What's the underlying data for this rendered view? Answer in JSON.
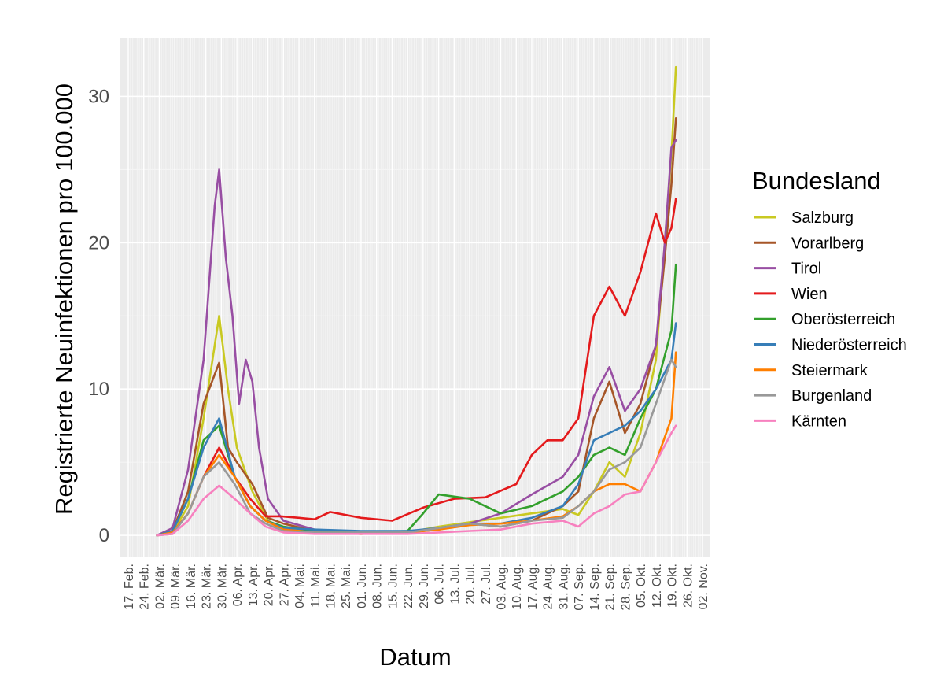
{
  "chart_data": {
    "type": "line",
    "title": "",
    "xlabel": "Datum",
    "ylabel": "Registrierte Neuinfektionen pro 100.000",
    "legend_title": "Bundesland",
    "legend_position": "right",
    "grid": true,
    "x_start": "2020-02-17",
    "x_end": "2020-11-02",
    "ylim": [
      -1.5,
      34
    ],
    "y_ticks": [
      0,
      10,
      20,
      30
    ],
    "y_tick_labels": [
      "0",
      "10",
      "20",
      "30"
    ],
    "x_ticks": [
      "2020-02-17",
      "2020-02-24",
      "2020-03-02",
      "2020-03-09",
      "2020-03-16",
      "2020-03-23",
      "2020-03-30",
      "2020-04-06",
      "2020-04-13",
      "2020-04-20",
      "2020-04-27",
      "2020-05-04",
      "2020-05-11",
      "2020-05-18",
      "2020-05-25",
      "2020-06-01",
      "2020-06-08",
      "2020-06-15",
      "2020-06-22",
      "2020-06-29",
      "2020-07-06",
      "2020-07-13",
      "2020-07-20",
      "2020-07-27",
      "2020-08-03",
      "2020-08-10",
      "2020-08-17",
      "2020-08-24",
      "2020-08-31",
      "2020-09-07",
      "2020-09-14",
      "2020-09-21",
      "2020-09-28",
      "2020-10-05",
      "2020-10-12",
      "2020-10-19",
      "2020-10-26",
      "2020-11-02"
    ],
    "x_tick_labels": [
      "17. Feb.",
      "24. Feb.",
      "02. Mär.",
      "09. Mär.",
      "16. Mär.",
      "23. Mär.",
      "30. Mär.",
      "06. Apr.",
      "13. Apr.",
      "20. Apr.",
      "27. Apr.",
      "04. Mai.",
      "11. Mai.",
      "18. Mai.",
      "25. Mai.",
      "01. Jun.",
      "08. Jun.",
      "15. Jun.",
      "22. Jun.",
      "29. Jun.",
      "06. Jul.",
      "13. Jul.",
      "20. Jul.",
      "27. Jul.",
      "03. Aug.",
      "10. Aug.",
      "17. Aug.",
      "24. Aug.",
      "31. Aug.",
      "07. Sep.",
      "14. Sep.",
      "21. Sep.",
      "28. Sep.",
      "05. Okt.",
      "12. Okt.",
      "19. Okt.",
      "26. Okt.",
      "02. Nov."
    ],
    "series": [
      {
        "name": "Salzburg",
        "color": "#c9c922",
        "x": [
          "2020-03-01",
          "2020-03-08",
          "2020-03-15",
          "2020-03-22",
          "2020-03-29",
          "2020-04-02",
          "2020-04-06",
          "2020-04-13",
          "2020-04-20",
          "2020-04-27",
          "2020-05-11",
          "2020-06-01",
          "2020-06-22",
          "2020-07-06",
          "2020-07-20",
          "2020-08-03",
          "2020-08-17",
          "2020-08-31",
          "2020-09-07",
          "2020-09-14",
          "2020-09-21",
          "2020-09-28",
          "2020-10-05",
          "2020-10-12",
          "2020-10-16",
          "2020-10-19",
          "2020-10-21"
        ],
        "y": [
          0,
          0.2,
          2,
          8,
          15,
          10,
          6,
          3,
          1,
          0.5,
          0.2,
          0.1,
          0.2,
          0.6,
          0.9,
          1.2,
          1.5,
          1.8,
          1.4,
          3,
          5,
          4,
          7,
          12,
          20,
          26,
          32
        ]
      },
      {
        "name": "Vorarlberg",
        "color": "#a65628",
        "x": [
          "2020-03-01",
          "2020-03-08",
          "2020-03-15",
          "2020-03-22",
          "2020-03-29",
          "2020-04-02",
          "2020-04-06",
          "2020-04-13",
          "2020-04-20",
          "2020-04-27",
          "2020-05-11",
          "2020-06-01",
          "2020-06-22",
          "2020-07-06",
          "2020-07-20",
          "2020-08-03",
          "2020-08-17",
          "2020-08-31",
          "2020-09-07",
          "2020-09-14",
          "2020-09-21",
          "2020-09-28",
          "2020-10-05",
          "2020-10-12",
          "2020-10-16",
          "2020-10-19",
          "2020-10-21"
        ],
        "y": [
          0,
          0.3,
          3,
          9,
          11.8,
          6,
          5,
          3.5,
          1.2,
          0.8,
          0.3,
          0.2,
          0.2,
          0.4,
          0.8,
          0.6,
          1,
          2,
          3,
          8,
          10.5,
          7,
          9,
          13,
          19,
          24,
          28.5
        ]
      },
      {
        "name": "Tirol",
        "color": "#984ea3",
        "x": [
          "2020-03-01",
          "2020-03-08",
          "2020-03-15",
          "2020-03-22",
          "2020-03-27",
          "2020-03-29",
          "2020-04-01",
          "2020-04-04",
          "2020-04-07",
          "2020-04-10",
          "2020-04-13",
          "2020-04-16",
          "2020-04-20",
          "2020-04-27",
          "2020-05-11",
          "2020-06-01",
          "2020-06-22",
          "2020-07-06",
          "2020-07-20",
          "2020-08-03",
          "2020-08-17",
          "2020-08-31",
          "2020-09-07",
          "2020-09-14",
          "2020-09-21",
          "2020-09-28",
          "2020-10-05",
          "2020-10-12",
          "2020-10-16",
          "2020-10-19",
          "2020-10-21"
        ],
        "y": [
          0,
          0.5,
          4.5,
          12,
          22.5,
          25,
          19,
          15,
          9,
          12,
          10.5,
          6,
          2.5,
          1,
          0.4,
          0.2,
          0.2,
          0.5,
          0.8,
          1.5,
          2.8,
          4,
          5.5,
          9.5,
          11.5,
          8.5,
          10,
          13,
          20,
          26.5,
          27
        ]
      },
      {
        "name": "Wien",
        "color": "#e41a1c",
        "x": [
          "2020-03-01",
          "2020-03-08",
          "2020-03-15",
          "2020-03-22",
          "2020-03-29",
          "2020-04-05",
          "2020-04-12",
          "2020-04-19",
          "2020-04-26",
          "2020-05-04",
          "2020-05-11",
          "2020-05-18",
          "2020-06-01",
          "2020-06-15",
          "2020-06-29",
          "2020-07-13",
          "2020-07-27",
          "2020-08-10",
          "2020-08-17",
          "2020-08-24",
          "2020-08-31",
          "2020-09-07",
          "2020-09-14",
          "2020-09-21",
          "2020-09-28",
          "2020-10-05",
          "2020-10-12",
          "2020-10-16",
          "2020-10-19",
          "2020-10-21"
        ],
        "y": [
          0,
          0.2,
          1.5,
          4,
          6,
          4,
          2.5,
          1.3,
          1.3,
          1.2,
          1.1,
          1.6,
          1.2,
          1.0,
          1.9,
          2.5,
          2.6,
          3.5,
          5.5,
          6.5,
          6.5,
          8,
          15,
          17,
          15,
          18,
          22,
          20,
          21,
          23
        ]
      },
      {
        "name": "Oberösterreich",
        "color": "#33a02c",
        "x": [
          "2020-03-01",
          "2020-03-08",
          "2020-03-15",
          "2020-03-22",
          "2020-03-29",
          "2020-04-05",
          "2020-04-12",
          "2020-04-19",
          "2020-04-27",
          "2020-05-11",
          "2020-06-01",
          "2020-06-22",
          "2020-06-29",
          "2020-07-06",
          "2020-07-20",
          "2020-08-03",
          "2020-08-17",
          "2020-08-31",
          "2020-09-07",
          "2020-09-14",
          "2020-09-21",
          "2020-09-28",
          "2020-10-05",
          "2020-10-12",
          "2020-10-19",
          "2020-10-21"
        ],
        "y": [
          0,
          0.3,
          2.5,
          6.5,
          7.5,
          4,
          2,
          1,
          0.6,
          0.3,
          0.2,
          0.3,
          1.5,
          2.8,
          2.5,
          1.5,
          2,
          3,
          4,
          5.5,
          6,
          5.5,
          8,
          10,
          14,
          18.5
        ]
      },
      {
        "name": "Niederösterreich",
        "color": "#377eb8",
        "x": [
          "2020-03-01",
          "2020-03-08",
          "2020-03-15",
          "2020-03-22",
          "2020-03-29",
          "2020-04-05",
          "2020-04-12",
          "2020-04-19",
          "2020-04-27",
          "2020-05-11",
          "2020-06-01",
          "2020-06-22",
          "2020-07-06",
          "2020-07-20",
          "2020-08-03",
          "2020-08-17",
          "2020-08-31",
          "2020-09-07",
          "2020-09-14",
          "2020-09-21",
          "2020-09-28",
          "2020-10-05",
          "2020-10-12",
          "2020-10-19",
          "2020-10-21"
        ],
        "y": [
          0,
          0.3,
          2.5,
          6,
          8,
          4,
          2,
          1,
          0.5,
          0.4,
          0.3,
          0.3,
          0.5,
          0.8,
          0.8,
          1.2,
          2,
          3.5,
          6.5,
          7,
          7.5,
          8.5,
          10,
          12,
          14.5
        ]
      },
      {
        "name": "Steiermark",
        "color": "#ff7f00",
        "x": [
          "2020-03-01",
          "2020-03-08",
          "2020-03-15",
          "2020-03-22",
          "2020-03-29",
          "2020-04-05",
          "2020-04-12",
          "2020-04-19",
          "2020-04-27",
          "2020-05-11",
          "2020-06-01",
          "2020-06-22",
          "2020-07-06",
          "2020-07-20",
          "2020-08-03",
          "2020-08-17",
          "2020-08-31",
          "2020-09-07",
          "2020-09-14",
          "2020-09-21",
          "2020-09-28",
          "2020-10-05",
          "2020-10-12",
          "2020-10-19",
          "2020-10-21"
        ],
        "y": [
          0,
          0.2,
          1.5,
          4,
          5.5,
          4,
          2,
          1,
          0.4,
          0.2,
          0.1,
          0.2,
          0.4,
          0.7,
          0.8,
          1,
          1.3,
          2,
          3,
          3.5,
          3.5,
          3,
          5,
          8,
          12.5
        ]
      },
      {
        "name": "Burgenland",
        "color": "#999999",
        "x": [
          "2020-03-01",
          "2020-03-08",
          "2020-03-15",
          "2020-03-22",
          "2020-03-29",
          "2020-04-05",
          "2020-04-12",
          "2020-04-19",
          "2020-04-27",
          "2020-05-11",
          "2020-06-01",
          "2020-06-22",
          "2020-07-06",
          "2020-07-20",
          "2020-08-03",
          "2020-08-17",
          "2020-08-31",
          "2020-09-07",
          "2020-09-14",
          "2020-09-21",
          "2020-09-28",
          "2020-10-05",
          "2020-10-12",
          "2020-10-19",
          "2020-10-21"
        ],
        "y": [
          0,
          0.1,
          1.5,
          4,
          5,
          3.5,
          1.5,
          0.8,
          0.3,
          0.2,
          0.2,
          0.2,
          0.5,
          0.8,
          0.6,
          1,
          1.2,
          2,
          3,
          4.5,
          5,
          6,
          9,
          12,
          11.5
        ]
      },
      {
        "name": "Kärnten",
        "color": "#f781bf",
        "x": [
          "2020-03-01",
          "2020-03-08",
          "2020-03-15",
          "2020-03-22",
          "2020-03-29",
          "2020-04-05",
          "2020-04-12",
          "2020-04-19",
          "2020-04-27",
          "2020-05-11",
          "2020-06-01",
          "2020-06-22",
          "2020-07-06",
          "2020-07-20",
          "2020-08-03",
          "2020-08-17",
          "2020-08-31",
          "2020-09-07",
          "2020-09-14",
          "2020-09-21",
          "2020-09-28",
          "2020-10-05",
          "2020-10-12",
          "2020-10-19",
          "2020-10-21"
        ],
        "y": [
          0,
          0.1,
          1,
          2.5,
          3.4,
          2.5,
          1.5,
          0.6,
          0.2,
          0.1,
          0.1,
          0.1,
          0.2,
          0.3,
          0.4,
          0.8,
          1.0,
          0.6,
          1.5,
          2,
          2.8,
          3,
          5,
          7,
          7.5
        ]
      }
    ]
  }
}
